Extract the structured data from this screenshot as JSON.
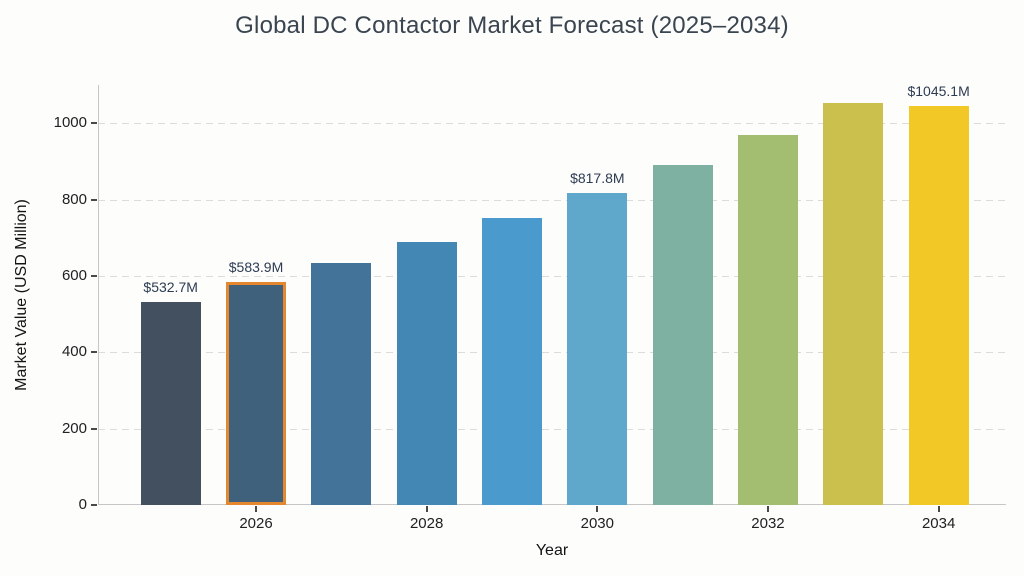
{
  "chart_data": {
    "type": "bar",
    "title": "Global DC Contactor Market Forecast (2025–2034)",
    "xlabel": "Year",
    "ylabel": "Market Value (USD Million)",
    "ylim": [
      0,
      1100
    ],
    "ytick_values": [
      0,
      200,
      400,
      600,
      800,
      1000
    ],
    "ytick_labels": [
      "0",
      "200",
      "400",
      "600",
      "800",
      "1000"
    ],
    "xtick_labels": [
      "2026",
      "2028",
      "2030",
      "2032",
      "2034"
    ],
    "grid": "horizontal-dashed",
    "legend": "none",
    "highlight_border_color": "#e5872e",
    "bars": [
      {
        "year": "2025",
        "value": 532.7,
        "label": "$532.7M",
        "color": "#42505f",
        "highlighted": false
      },
      {
        "year": "2026",
        "value": 583.9,
        "label": "$583.9M",
        "color": "#3f617c",
        "highlighted": true
      },
      {
        "year": "2027",
        "value": 635,
        "label": null,
        "color": "#44739a",
        "highlighted": false
      },
      {
        "year": "2028",
        "value": 689,
        "label": null,
        "color": "#4387b4",
        "highlighted": false
      },
      {
        "year": "2029",
        "value": 752,
        "label": null,
        "color": "#4b9ace",
        "highlighted": false
      },
      {
        "year": "2030",
        "value": 817.8,
        "label": "$817.8M",
        "color": "#60a8cb",
        "highlighted": false
      },
      {
        "year": "2031",
        "value": 891,
        "label": null,
        "color": "#7fb1a2",
        "highlighted": false
      },
      {
        "year": "2032",
        "value": 969,
        "label": null,
        "color": "#a3bd71",
        "highlighted": false
      },
      {
        "year": "2033",
        "value": 1054,
        "label": null,
        "color": "#cbc04e",
        "highlighted": false
      },
      {
        "year": "2034",
        "value": 1045.1,
        "label": "$1045.1M",
        "color": "#f2c827",
        "highlighted": false
      }
    ]
  }
}
